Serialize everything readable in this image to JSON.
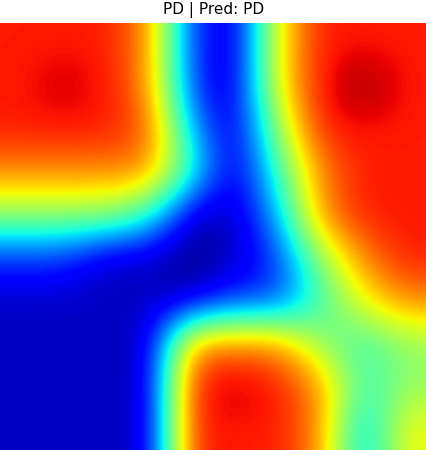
{
  "chart_data": {
    "type": "heatmap",
    "title": "PD | Pred: PD",
    "tick_labels": false,
    "cells": [
      [
        0.9,
        0.9,
        0.9,
        0.8,
        0.3,
        0.2,
        0.7,
        0.9,
        0.9,
        0.9
      ],
      [
        0.9,
        0.95,
        0.9,
        0.8,
        0.3,
        0.2,
        0.7,
        0.9,
        1.0,
        0.9
      ],
      [
        0.9,
        0.9,
        0.9,
        0.85,
        0.4,
        0.2,
        0.6,
        0.9,
        0.9,
        0.9
      ],
      [
        0.8,
        0.8,
        0.8,
        0.8,
        0.5,
        0.2,
        0.5,
        0.8,
        0.9,
        0.9
      ],
      [
        0.6,
        0.6,
        0.6,
        0.5,
        0.2,
        0.2,
        0.4,
        0.8,
        0.9,
        0.9
      ],
      [
        0.3,
        0.3,
        0.2,
        0.2,
        0.15,
        0.2,
        0.3,
        0.6,
        0.8,
        0.9
      ],
      [
        0.2,
        0.2,
        0.2,
        0.2,
        0.2,
        0.3,
        0.3,
        0.5,
        0.7,
        0.8
      ],
      [
        0.2,
        0.2,
        0.2,
        0.2,
        0.8,
        0.8,
        0.8,
        0.6,
        0.5,
        0.6
      ],
      [
        0.2,
        0.2,
        0.2,
        0.2,
        0.9,
        0.95,
        0.9,
        0.8,
        0.5,
        0.6
      ],
      [
        0.2,
        0.2,
        0.2,
        0.2,
        0.9,
        0.9,
        0.9,
        0.8,
        0.4,
        0.7
      ]
    ]
  }
}
